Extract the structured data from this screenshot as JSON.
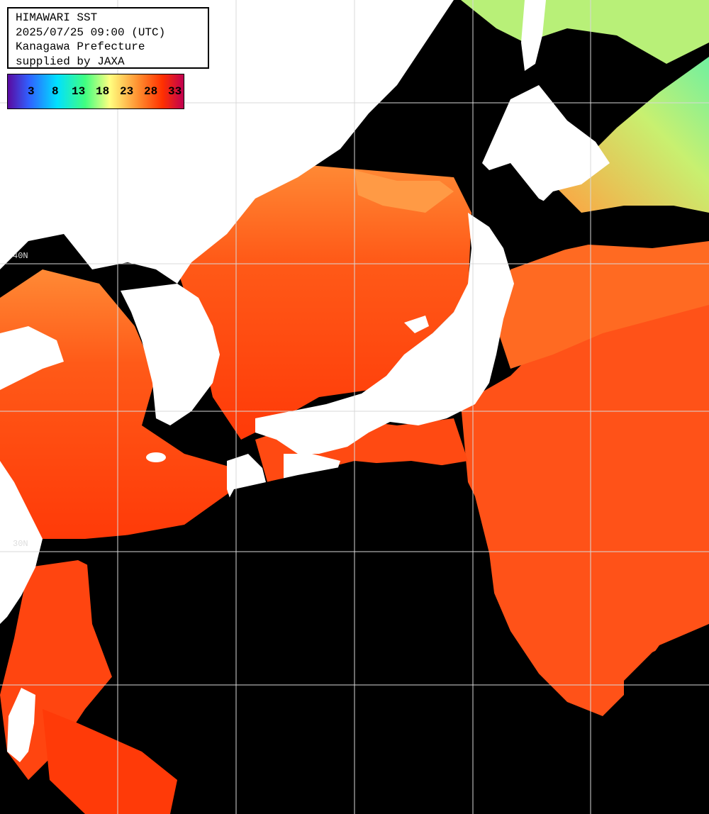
{
  "header": {
    "line1": "HIMAWARI SST",
    "line2": "2025/07/25 09:00 (UTC)",
    "line3": "Kanagawa Prefecture",
    "line4": "supplied by JAXA"
  },
  "legend": {
    "ticks": [
      "3",
      "8",
      "13",
      "18",
      "23",
      "28",
      "33"
    ],
    "colors": [
      "#5a0aa0",
      "#3060ff",
      "#00e0ff",
      "#40ff80",
      "#ffff80",
      "#ff9030",
      "#ff3000",
      "#c00050"
    ]
  },
  "grid_labels": {
    "lat_upper": "40N",
    "lat_lower": "30N"
  },
  "colors": {
    "sea_warm": "#ff4a10",
    "sea_mid": "#ff6a20",
    "sea_cool": "#ff9a40",
    "cloud": "#000000",
    "land": "#ffffff",
    "grid": "#d8d8d8",
    "north_green": "#9cf070"
  }
}
